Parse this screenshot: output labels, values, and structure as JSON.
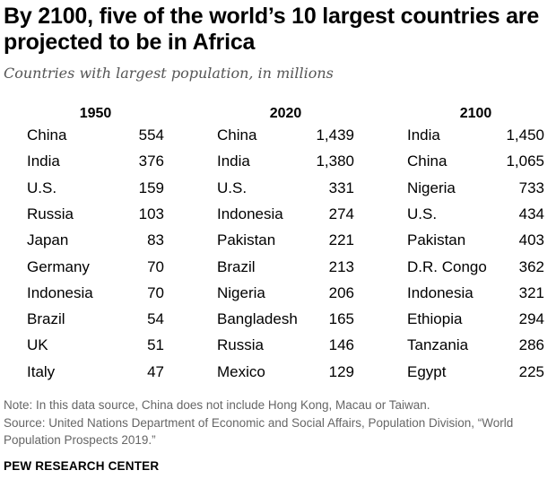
{
  "title": "By 2100, five of the world’s 10 largest countries are projected to be in Africa",
  "subtitle": "Countries with largest population, in millions",
  "chart_data": {
    "type": "table",
    "unit": "millions",
    "columns": [
      {
        "year": "1950",
        "rows": [
          {
            "country": "China",
            "value": "554"
          },
          {
            "country": "India",
            "value": "376"
          },
          {
            "country": "U.S.",
            "value": "159"
          },
          {
            "country": "Russia",
            "value": "103"
          },
          {
            "country": "Japan",
            "value": "83"
          },
          {
            "country": "Germany",
            "value": "70"
          },
          {
            "country": "Indonesia",
            "value": "70"
          },
          {
            "country": "Brazil",
            "value": "54"
          },
          {
            "country": "UK",
            "value": "51"
          },
          {
            "country": "Italy",
            "value": "47"
          }
        ]
      },
      {
        "year": "2020",
        "rows": [
          {
            "country": "China",
            "value": "1,439"
          },
          {
            "country": "India",
            "value": "1,380"
          },
          {
            "country": "U.S.",
            "value": "331"
          },
          {
            "country": "Indonesia",
            "value": "274"
          },
          {
            "country": "Pakistan",
            "value": "221"
          },
          {
            "country": "Brazil",
            "value": "213"
          },
          {
            "country": "Nigeria",
            "value": "206"
          },
          {
            "country": "Bangladesh",
            "value": "165"
          },
          {
            "country": "Russia",
            "value": "146"
          },
          {
            "country": "Mexico",
            "value": "129"
          }
        ]
      },
      {
        "year": "2100",
        "rows": [
          {
            "country": "India",
            "value": "1,450"
          },
          {
            "country": "China",
            "value": "1,065"
          },
          {
            "country": "Nigeria",
            "value": "733"
          },
          {
            "country": "U.S.",
            "value": "434"
          },
          {
            "country": "Pakistan",
            "value": "403"
          },
          {
            "country": "D.R. Congo",
            "value": "362"
          },
          {
            "country": "Indonesia",
            "value": "321"
          },
          {
            "country": "Ethiopia",
            "value": "294"
          },
          {
            "country": "Tanzania",
            "value": "286"
          },
          {
            "country": "Egypt",
            "value": "225"
          }
        ]
      }
    ]
  },
  "note": "Note: In this data source, China does not include Hong Kong, Macau or Taiwan.",
  "source": "Source: United Nations Department of Economic and Social Affairs, Population Division, “World Population Prospects 2019.”",
  "brand": "PEW RESEARCH CENTER"
}
